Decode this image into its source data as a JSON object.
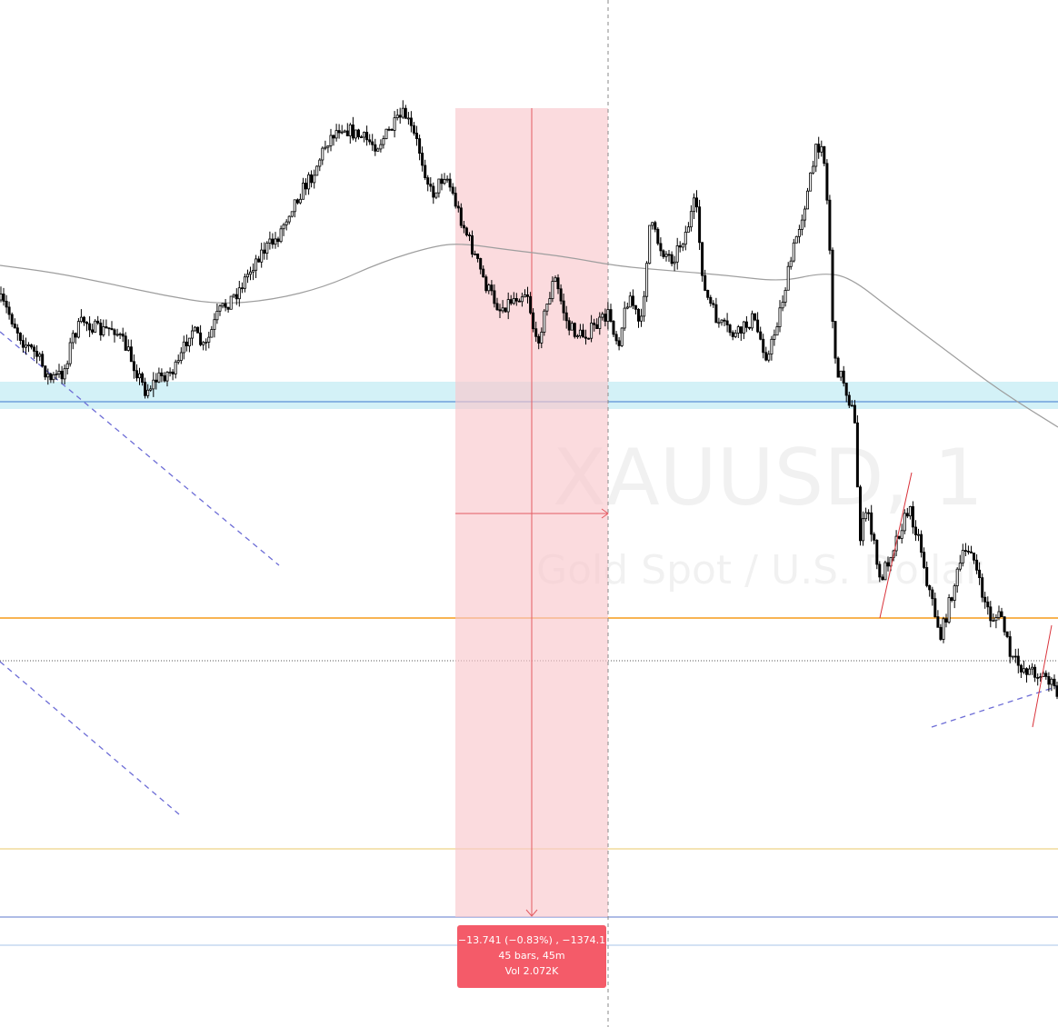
{
  "chart": {
    "symbol_watermark": "XAUUSD, 1",
    "description_watermark": "Gold Spot / U.S. Dollar",
    "colors": {
      "background": "#ffffff",
      "candle": "#000000",
      "moving_average": "#9e9e9e",
      "support_zone_fill": "#c8eef5",
      "support_line": "#5b8fd6",
      "orange_level": "#f59c1a",
      "yellow_level": "#e8c86a",
      "blue_level": "#7f95d8",
      "measure_fill": "#f9c7cd",
      "measure_line": "#e35b62",
      "trend_dash": "#6d6dd6"
    }
  },
  "chart_data": {
    "type": "candlestick",
    "interval": "1",
    "moving_average_visible": true,
    "grid": false
  },
  "measure": {
    "change_text": "−13.741 (−0.83%) , −1374.1",
    "bars_text": "45 bars, 45m",
    "volume_text": "Vol 2.072K"
  }
}
